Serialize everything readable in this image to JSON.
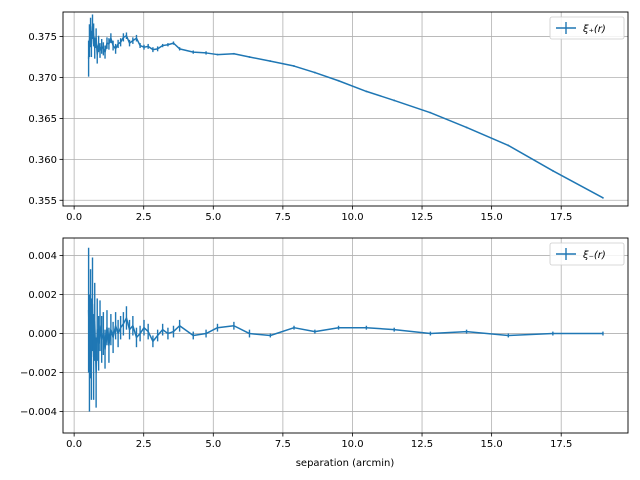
{
  "colors": {
    "series": "#1f77b4",
    "grid": "#b0b0b0",
    "axes": "#000000"
  },
  "chart_data": [
    {
      "type": "line",
      "title": "",
      "xlabel": "",
      "ylabel": "",
      "xlim": [
        -0.4,
        19.9
      ],
      "ylim": [
        0.3543,
        0.378
      ],
      "xticks": [
        0.0,
        2.5,
        5.0,
        7.5,
        10.0,
        12.5,
        15.0,
        17.5
      ],
      "xtick_labels": [
        "0.0",
        "2.5",
        "5.0",
        "7.5",
        "10.0",
        "12.5",
        "15.0",
        "17.5"
      ],
      "yticks": [
        0.355,
        0.36,
        0.365,
        0.37,
        0.375
      ],
      "ytick_labels": [
        "0.355",
        "0.360",
        "0.365",
        "0.370",
        "0.375"
      ],
      "grid": true,
      "legend_position": "top-right",
      "series": [
        {
          "name": "ξ₊(r)",
          "x": [
            0.52,
            0.55,
            0.59,
            0.62,
            0.66,
            0.7,
            0.74,
            0.79,
            0.83,
            0.88,
            0.93,
            0.99,
            1.05,
            1.11,
            1.18,
            1.25,
            1.32,
            1.4,
            1.49,
            1.58,
            1.67,
            1.77,
            1.88,
            1.99,
            2.11,
            2.24,
            2.37,
            2.51,
            2.66,
            2.83,
            3.0,
            3.18,
            3.37,
            3.57,
            3.79,
            4.28,
            4.74,
            5.15,
            5.74,
            6.3,
            7.05,
            7.9,
            8.65,
            9.5,
            10.5,
            11.5,
            12.8,
            14.1,
            15.6,
            17.2,
            19.0
          ],
          "y": [
            0.3723,
            0.3745,
            0.3755,
            0.3741,
            0.3762,
            0.3752,
            0.3736,
            0.3748,
            0.3728,
            0.3741,
            0.3733,
            0.3738,
            0.3735,
            0.3731,
            0.3742,
            0.3741,
            0.3748,
            0.3739,
            0.3735,
            0.3741,
            0.3743,
            0.3749,
            0.3751,
            0.3742,
            0.3745,
            0.3748,
            0.3739,
            0.3737,
            0.3738,
            0.3734,
            0.3735,
            0.3739,
            0.374,
            0.3742,
            0.3735,
            0.3731,
            0.373,
            0.3728,
            0.3729,
            0.3725,
            0.372,
            0.3714,
            0.3706,
            0.3696,
            0.3683,
            0.3672,
            0.3657,
            0.3639,
            0.3617,
            0.3586,
            0.3553
          ],
          "yerr": [
            0.0022,
            0.002,
            0.0018,
            0.0016,
            0.0015,
            0.0014,
            0.0013,
            0.0012,
            0.0011,
            0.001,
            0.0009,
            0.0009,
            0.0008,
            0.0008,
            0.0007,
            0.0007,
            0.0006,
            0.0006,
            0.0006,
            0.0005,
            0.0005,
            0.0005,
            0.0004,
            0.0004,
            0.0004,
            0.0004,
            0.0003,
            0.0003,
            0.0003,
            0.0003,
            0.0003,
            0.0002,
            0.0002,
            0.0002,
            0.0002,
            0.0002,
            0.0002,
            0.0001,
            0.0001,
            0.0001,
            0.0001,
            0.0001,
            0.0001,
            0.0001,
            0.0001,
            0.0001,
            0.0001,
            0.0001,
            0.0001,
            0.0001,
            0.0001
          ]
        }
      ]
    },
    {
      "type": "line",
      "title": "",
      "xlabel": "separation (arcmin)",
      "ylabel": "",
      "xlim": [
        -0.4,
        19.9
      ],
      "ylim": [
        -0.0051,
        0.0049
      ],
      "xticks": [
        0.0,
        2.5,
        5.0,
        7.5,
        10.0,
        12.5,
        15.0,
        17.5
      ],
      "xtick_labels": [
        "0.0",
        "2.5",
        "5.0",
        "7.5",
        "10.0",
        "12.5",
        "15.0",
        "17.5"
      ],
      "yticks": [
        -0.004,
        -0.002,
        0.0,
        0.002,
        0.004
      ],
      "ytick_labels": [
        "−0.004",
        "−0.002",
        "0.000",
        "0.002",
        "0.004"
      ],
      "grid": true,
      "legend_position": "top-right",
      "series": [
        {
          "name": "ξ₋(r)",
          "x": [
            0.52,
            0.55,
            0.59,
            0.62,
            0.66,
            0.7,
            0.74,
            0.79,
            0.83,
            0.88,
            0.93,
            0.99,
            1.05,
            1.11,
            1.18,
            1.25,
            1.32,
            1.4,
            1.49,
            1.58,
            1.67,
            1.77,
            1.88,
            1.99,
            2.11,
            2.24,
            2.37,
            2.51,
            2.66,
            2.83,
            3.0,
            3.18,
            3.37,
            3.57,
            3.79,
            4.28,
            4.74,
            5.15,
            5.74,
            6.3,
            7.05,
            7.9,
            8.65,
            9.5,
            10.5,
            11.5,
            12.8,
            14.1,
            15.6,
            17.2,
            19.0
          ],
          "y": [
            0.0012,
            -0.001,
            0.0005,
            -0.0008,
            0.0015,
            -0.0012,
            0.0006,
            -0.002,
            0.0002,
            -0.0005,
            0.0004,
            -0.0003,
            0.0,
            -0.0008,
            0.0003,
            -0.0006,
            0.0002,
            -0.0002,
            0.0004,
            0.0,
            0.0003,
            0.0005,
            0.0008,
            0.0002,
            0.0004,
            -0.0002,
            0.0,
            0.0003,
            0.0001,
            -0.0004,
            -0.0001,
            0.0002,
            0.0,
            0.0001,
            0.0004,
            -0.0001,
            0.0,
            0.0003,
            0.0004,
            0.0,
            -0.0001,
            0.0003,
            0.0001,
            0.0003,
            0.0003,
            0.0002,
            0.0,
            0.0001,
            -0.0001,
            0.0,
            0.0
          ],
          "yerr": [
            0.0032,
            0.003,
            0.0028,
            0.0026,
            0.0024,
            0.0022,
            0.002,
            0.0018,
            0.0016,
            0.0014,
            0.0013,
            0.0012,
            0.0011,
            0.001,
            0.0009,
            0.0009,
            0.0008,
            0.0008,
            0.0007,
            0.0007,
            0.0006,
            0.0006,
            0.0006,
            0.0005,
            0.0005,
            0.0005,
            0.0004,
            0.0004,
            0.0004,
            0.0003,
            0.0003,
            0.0003,
            0.0003,
            0.0003,
            0.0003,
            0.0002,
            0.0002,
            0.0002,
            0.0002,
            0.0002,
            0.0001,
            0.0001,
            0.0001,
            0.0001,
            0.0001,
            0.0001,
            0.0001,
            0.0001,
            0.0001,
            0.0001,
            0.0001
          ]
        }
      ]
    }
  ]
}
